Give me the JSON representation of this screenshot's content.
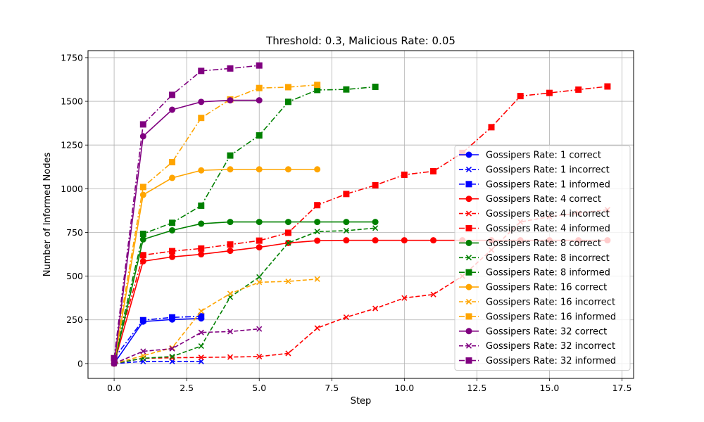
{
  "chart_data": {
    "type": "line",
    "title": "Threshold: 0.3, Malicious Rate: 0.05",
    "xlabel": "Step",
    "ylabel": "Number of Informed Nodes",
    "xlim": [
      -0.9,
      17.9
    ],
    "ylim": [
      -85,
      1790
    ],
    "xticks": [
      0.0,
      2.5,
      5.0,
      7.5,
      10.0,
      12.5,
      15.0,
      17.5
    ],
    "xtick_labels": [
      "0.0",
      "2.5",
      "5.0",
      "7.5",
      "10.0",
      "12.5",
      "15.0",
      "17.5"
    ],
    "yticks": [
      0,
      250,
      500,
      750,
      1000,
      1250,
      1500,
      1750
    ],
    "ytick_labels": [
      "0",
      "250",
      "500",
      "750",
      "1000",
      "1250",
      "1500",
      "1750"
    ],
    "grid": true,
    "legend_position": "lower-right",
    "series": [
      {
        "name": "Gossipers Rate: 1 correct",
        "color": "#0000ff",
        "style": "solid",
        "marker": "circle",
        "x": [
          0,
          1,
          2,
          3
        ],
        "y": [
          0,
          240,
          252,
          258
        ]
      },
      {
        "name": "Gossipers Rate: 1 incorrect",
        "color": "#0000ff",
        "style": "dashed",
        "marker": "x",
        "x": [
          0,
          1,
          2,
          3
        ],
        "y": [
          0,
          12,
          12,
          12
        ]
      },
      {
        "name": "Gossipers Rate: 1 informed",
        "color": "#0000ff",
        "style": "dashdot",
        "marker": "square",
        "x": [
          0,
          1,
          2,
          3
        ],
        "y": [
          30,
          248,
          264,
          270
        ]
      },
      {
        "name": "Gossipers Rate: 4 correct",
        "color": "#ff0000",
        "style": "solid",
        "marker": "circle",
        "x": [
          0,
          1,
          2,
          3,
          4,
          5,
          6,
          7,
          8,
          9,
          10,
          11,
          12,
          13,
          14,
          15,
          16,
          17
        ],
        "y": [
          0,
          585,
          610,
          625,
          645,
          665,
          690,
          703,
          705,
          705,
          705,
          705,
          705,
          705,
          705,
          705,
          705,
          705
        ]
      },
      {
        "name": "Gossipers Rate: 4 incorrect",
        "color": "#ff0000",
        "style": "dashed",
        "marker": "x",
        "x": [
          0,
          1,
          2,
          3,
          4,
          5,
          6,
          7,
          8,
          9,
          10,
          11,
          12,
          13,
          14,
          15,
          16,
          17
        ],
        "y": [
          0,
          30,
          33,
          35,
          37,
          40,
          58,
          203,
          265,
          315,
          375,
          395,
          500,
          650,
          810,
          840,
          860,
          880
        ]
      },
      {
        "name": "Gossipers Rate: 4 informed",
        "color": "#ff0000",
        "style": "dashdot",
        "marker": "square",
        "x": [
          0,
          1,
          2,
          3,
          4,
          5,
          6,
          7,
          8,
          9,
          10,
          11,
          12,
          13,
          14,
          15,
          16,
          17
        ],
        "y": [
          30,
          620,
          643,
          658,
          681,
          703,
          748,
          906,
          970,
          1020,
          1080,
          1100,
          1205,
          1352,
          1530,
          1548,
          1567,
          1585
        ]
      },
      {
        "name": "Gossipers Rate: 8 correct",
        "color": "#008000",
        "style": "solid",
        "marker": "circle",
        "x": [
          0,
          1,
          2,
          3,
          4,
          5,
          6,
          7,
          8,
          9
        ],
        "y": [
          0,
          710,
          762,
          800,
          810,
          810,
          810,
          810,
          810,
          810
        ]
      },
      {
        "name": "Gossipers Rate: 8 incorrect",
        "color": "#008000",
        "style": "dashed",
        "marker": "x",
        "x": [
          0,
          1,
          2,
          3,
          4,
          5,
          6,
          7,
          8,
          9
        ],
        "y": [
          0,
          30,
          40,
          100,
          380,
          495,
          690,
          755,
          760,
          775
        ]
      },
      {
        "name": "Gossipers Rate: 8 informed",
        "color": "#008000",
        "style": "dashdot",
        "marker": "square",
        "x": [
          0,
          1,
          2,
          3,
          4,
          5,
          6,
          7,
          8,
          9
        ],
        "y": [
          30,
          742,
          805,
          903,
          1190,
          1305,
          1497,
          1565,
          1568,
          1583
        ]
      },
      {
        "name": "Gossipers Rate: 16 correct",
        "color": "#ffa500",
        "style": "solid",
        "marker": "circle",
        "x": [
          0,
          1,
          2,
          3,
          4,
          5,
          6,
          7
        ],
        "y": [
          0,
          965,
          1062,
          1105,
          1111,
          1111,
          1111,
          1111
        ]
      },
      {
        "name": "Gossipers Rate: 16 incorrect",
        "color": "#ffa500",
        "style": "dashed",
        "marker": "x",
        "x": [
          0,
          1,
          2,
          3,
          4,
          5,
          6,
          7
        ],
        "y": [
          0,
          45,
          90,
          300,
          400,
          465,
          470,
          483
        ]
      },
      {
        "name": "Gossipers Rate: 16 informed",
        "color": "#ffa500",
        "style": "dashdot",
        "marker": "square",
        "x": [
          0,
          1,
          2,
          3,
          4,
          5,
          6,
          7
        ],
        "y": [
          30,
          1010,
          1152,
          1405,
          1511,
          1576,
          1581,
          1594
        ]
      },
      {
        "name": "Gossipers Rate: 32 correct",
        "color": "#800080",
        "style": "solid",
        "marker": "circle",
        "x": [
          0,
          1,
          2,
          3,
          4,
          5
        ],
        "y": [
          0,
          1300,
          1452,
          1497,
          1506,
          1506
        ]
      },
      {
        "name": "Gossipers Rate: 32 incorrect",
        "color": "#800080",
        "style": "dashed",
        "marker": "x",
        "x": [
          0,
          1,
          2,
          3,
          4,
          5
        ],
        "y": [
          0,
          70,
          85,
          178,
          183,
          198
        ]
      },
      {
        "name": "Gossipers Rate: 32 informed",
        "color": "#800080",
        "style": "dashdot",
        "marker": "square",
        "x": [
          0,
          1,
          2,
          3,
          4,
          5
        ],
        "y": [
          30,
          1368,
          1537,
          1674,
          1688,
          1705
        ]
      }
    ]
  }
}
